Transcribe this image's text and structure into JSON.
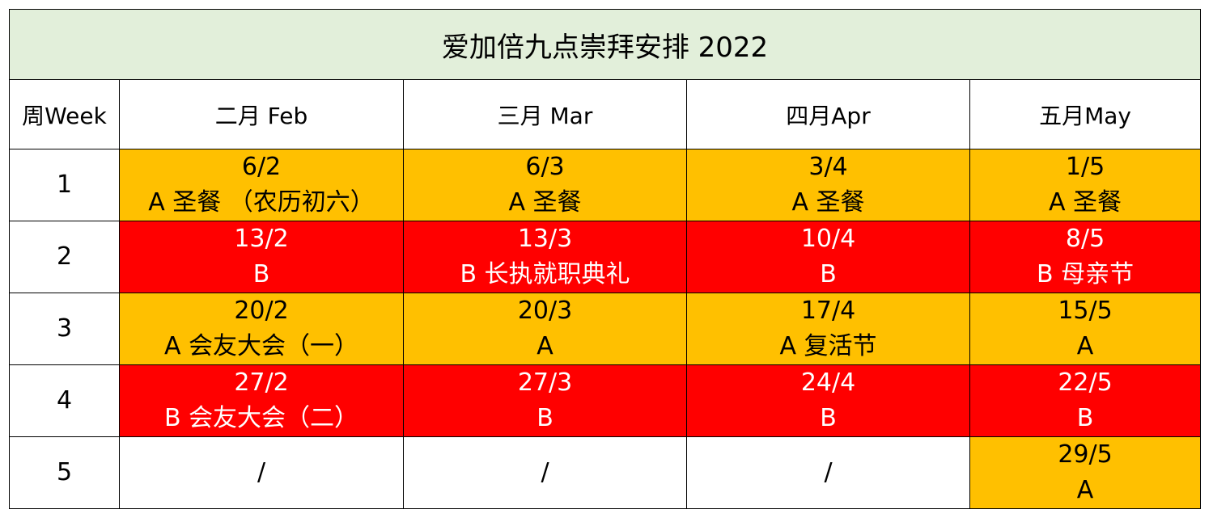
{
  "title": "爱加倍九点崇拜安排 2022",
  "headers": {
    "week": "周Week",
    "feb": "二月 Feb",
    "mar": "三月 Mar",
    "apr": "四月Apr",
    "may": "五月May"
  },
  "colors": {
    "title_bg": "#e2efda",
    "orange": "#ffc000",
    "red": "#ff0000",
    "white": "#ffffff"
  },
  "rows": [
    {
      "week": "1",
      "cells": [
        {
          "date": "6/2",
          "text": "A 圣餐 （农历初六）",
          "fill": "orange"
        },
        {
          "date": "6/3",
          "text": "A 圣餐",
          "fill": "orange"
        },
        {
          "date": "3/4",
          "text": "A 圣餐",
          "fill": "orange"
        },
        {
          "date": "1/5",
          "text": "A 圣餐",
          "fill": "orange"
        }
      ]
    },
    {
      "week": "2",
      "cells": [
        {
          "date": "13/2",
          "text": "B",
          "fill": "red"
        },
        {
          "date": "13/3",
          "text": "B 长执就职典礼",
          "fill": "red"
        },
        {
          "date": "10/4",
          "text": "B",
          "fill": "red"
        },
        {
          "date": "8/5",
          "text": "B 母亲节",
          "fill": "red"
        }
      ]
    },
    {
      "week": "3",
      "cells": [
        {
          "date": "20/2",
          "text": "A 会友大会（一）",
          "fill": "orange"
        },
        {
          "date": "20/3",
          "text": "A",
          "fill": "orange"
        },
        {
          "date": "17/4",
          "text": "A 复活节",
          "fill": "orange"
        },
        {
          "date": "15/5",
          "text": "A",
          "fill": "orange"
        }
      ]
    },
    {
      "week": "4",
      "cells": [
        {
          "date": "27/2",
          "text": "B 会友大会（二）",
          "fill": "red"
        },
        {
          "date": "27/3",
          "text": "B",
          "fill": "red"
        },
        {
          "date": "24/4",
          "text": "B",
          "fill": "red"
        },
        {
          "date": "22/5",
          "text": "B",
          "fill": "red"
        }
      ]
    },
    {
      "week": "5",
      "cells": [
        {
          "date": "/",
          "text": "",
          "fill": "white"
        },
        {
          "date": "/",
          "text": "",
          "fill": "white"
        },
        {
          "date": "/",
          "text": "",
          "fill": "white"
        },
        {
          "date": "29/5",
          "text": "A",
          "fill": "orange"
        }
      ]
    }
  ]
}
